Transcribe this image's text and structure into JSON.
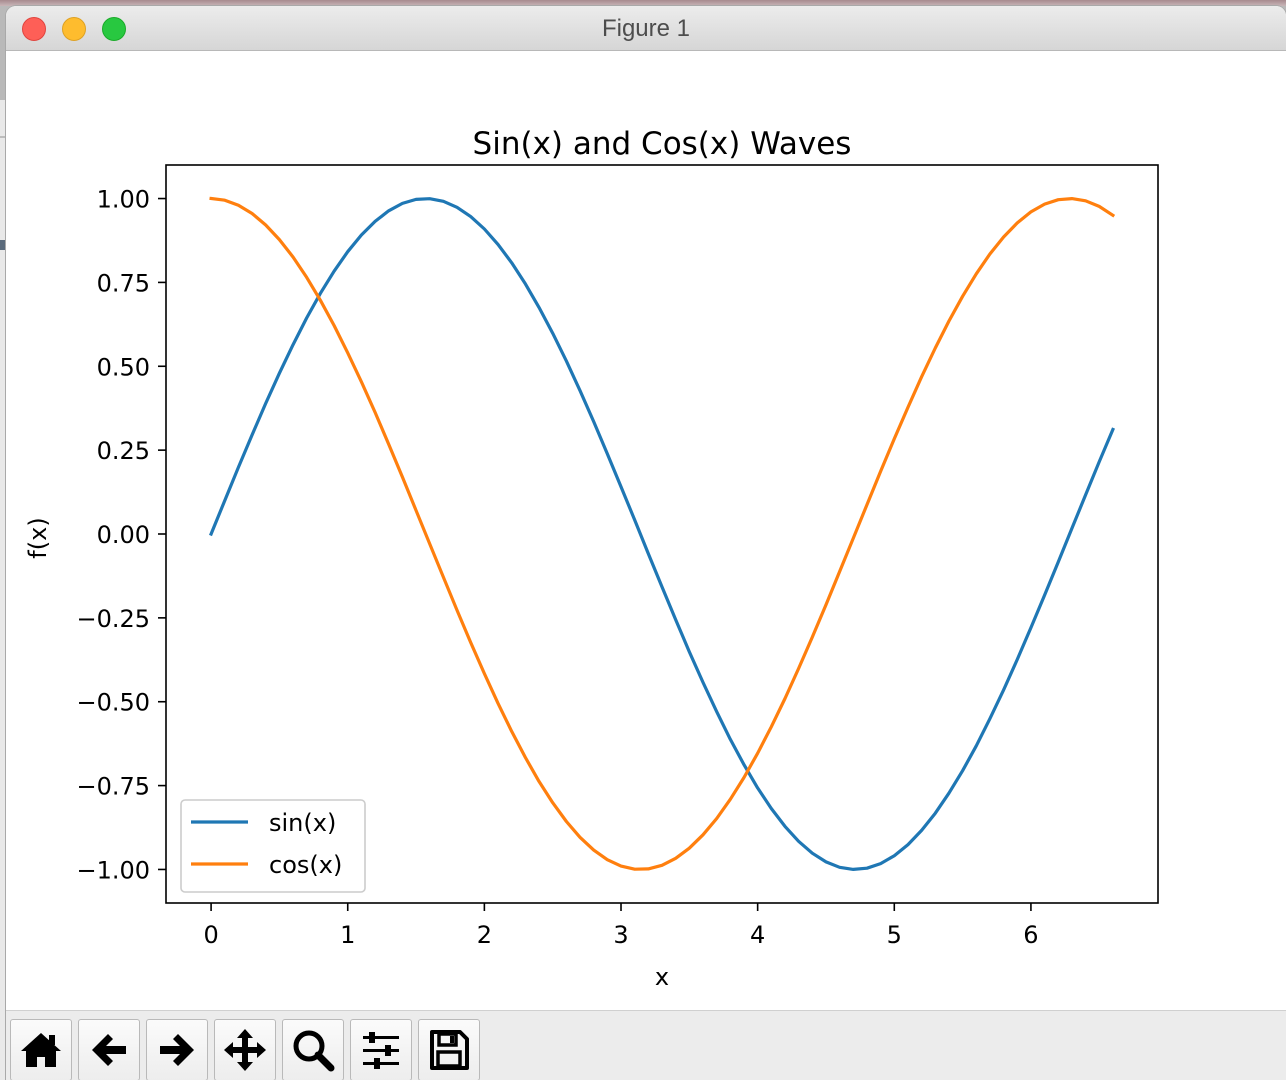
{
  "window": {
    "title": "Figure 1"
  },
  "toolbar": {
    "buttons": [
      {
        "icon": "home-icon",
        "name": "home-button"
      },
      {
        "icon": "back-arrow-icon",
        "name": "back-button"
      },
      {
        "icon": "forward-arrow-icon",
        "name": "forward-button"
      },
      {
        "icon": "pan-icon",
        "name": "pan-button"
      },
      {
        "icon": "zoom-icon",
        "name": "zoom-button"
      },
      {
        "icon": "configure-subplots-icon",
        "name": "configure-subplots-button"
      },
      {
        "icon": "save-icon",
        "name": "save-button"
      }
    ]
  },
  "chart_data": {
    "type": "line",
    "title": "Sin(x) and Cos(x) Waves",
    "xlabel": "x",
    "ylabel": "f(x)",
    "xlim": [
      -0.33,
      6.93
    ],
    "ylim": [
      -1.1,
      1.1
    ],
    "xticks": [
      0,
      1,
      2,
      3,
      4,
      5,
      6
    ],
    "yticks": [
      1.0,
      0.75,
      0.5,
      0.25,
      0.0,
      -0.25,
      -0.5,
      -0.75,
      -1.0
    ],
    "ytick_labels": [
      "1.00",
      "0.75",
      "0.50",
      "0.25",
      "0.00",
      "−0.25",
      "−0.50",
      "−0.75",
      "−1.00"
    ],
    "grid": false,
    "legend_position": "lower-left",
    "x": [
      0.0,
      0.1,
      0.2,
      0.3,
      0.4,
      0.5,
      0.6,
      0.7,
      0.8,
      0.9,
      1.0,
      1.1,
      1.2,
      1.3,
      1.4,
      1.5,
      1.6,
      1.7,
      1.8,
      1.9,
      2.0,
      2.1,
      2.2,
      2.3,
      2.4,
      2.5,
      2.6,
      2.7,
      2.8,
      2.9,
      3.0,
      3.1,
      3.2,
      3.3,
      3.4,
      3.5,
      3.6,
      3.7,
      3.8,
      3.9,
      4.0,
      4.1,
      4.2,
      4.3,
      4.4,
      4.5,
      4.6,
      4.7,
      4.8,
      4.9,
      5.0,
      5.1,
      5.2,
      5.3,
      5.4,
      5.5,
      5.6,
      5.7,
      5.8,
      5.9,
      6.0,
      6.1,
      6.2,
      6.3,
      6.4,
      6.5,
      6.6
    ],
    "series": [
      {
        "name": "sin(x)",
        "color": "#1f77b4",
        "values": [
          0.0,
          0.0998,
          0.1987,
          0.2955,
          0.3894,
          0.4794,
          0.5646,
          0.6442,
          0.7174,
          0.7833,
          0.8415,
          0.8912,
          0.932,
          0.9636,
          0.9854,
          0.9975,
          0.9996,
          0.9917,
          0.9738,
          0.9463,
          0.9093,
          0.8632,
          0.8085,
          0.7457,
          0.6755,
          0.5985,
          0.5155,
          0.4274,
          0.335,
          0.2392,
          0.1411,
          0.0416,
          -0.0584,
          -0.1577,
          -0.2555,
          -0.3508,
          -0.4425,
          -0.5298,
          -0.6119,
          -0.6878,
          -0.7568,
          -0.8183,
          -0.8716,
          -0.9162,
          -0.9516,
          -0.9775,
          -0.9937,
          -0.9999,
          -0.9962,
          -0.9825,
          -0.9589,
          -0.9258,
          -0.8835,
          -0.8323,
          -0.7728,
          -0.7055,
          -0.6313,
          -0.5507,
          -0.4646,
          -0.3739,
          -0.2794,
          -0.1822,
          -0.0831,
          0.0168,
          0.1165,
          0.2151,
          0.3115
        ]
      },
      {
        "name": "cos(x)",
        "color": "#ff7f0e",
        "values": [
          1.0,
          0.995,
          0.9801,
          0.9553,
          0.9211,
          0.8776,
          0.8253,
          0.7648,
          0.6967,
          0.6216,
          0.5403,
          0.4536,
          0.3624,
          0.2675,
          0.17,
          0.0707,
          -0.0292,
          -0.1288,
          -0.2272,
          -0.3233,
          -0.4161,
          -0.5048,
          -0.5885,
          -0.6663,
          -0.7374,
          -0.8011,
          -0.8569,
          -0.904,
          -0.9422,
          -0.971,
          -0.99,
          -0.9991,
          -0.9983,
          -0.9875,
          -0.9668,
          -0.9365,
          -0.8968,
          -0.8481,
          -0.791,
          -0.7259,
          -0.6536,
          -0.5748,
          -0.4903,
          -0.4008,
          -0.3073,
          -0.2108,
          -0.1122,
          -0.0124,
          0.0875,
          0.1865,
          0.2837,
          0.378,
          0.4685,
          0.5544,
          0.6347,
          0.7087,
          0.7756,
          0.8347,
          0.8855,
          0.9275,
          0.9602,
          0.9833,
          0.9965,
          0.9999,
          0.9932,
          0.9766,
          0.9502
        ]
      }
    ]
  }
}
